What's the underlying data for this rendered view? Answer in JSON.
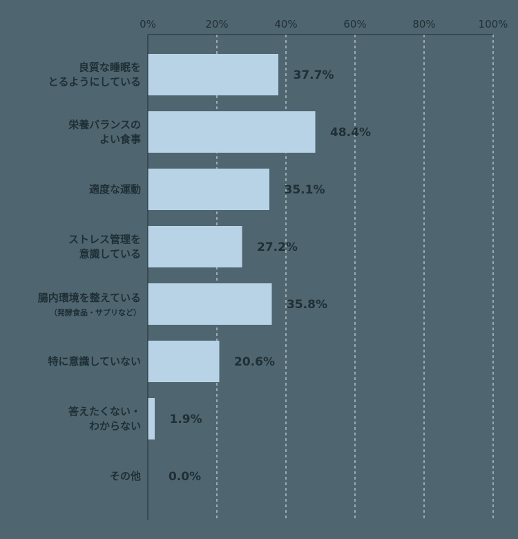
{
  "chart_data": {
    "type": "bar",
    "orientation": "horizontal",
    "categories": [
      {
        "lines": [
          "良質な睡眠を",
          "とるようにしている"
        ]
      },
      {
        "lines": [
          "栄養バランスの",
          "よい食事"
        ]
      },
      {
        "lines": [
          "適度な運動"
        ]
      },
      {
        "lines": [
          "ストレス管理を",
          "意識している"
        ]
      },
      {
        "lines": [
          "腸内環境を整えている"
        ],
        "sub": "（発酵食品・サプリなど）"
      },
      {
        "lines": [
          "特に意識していない"
        ]
      },
      {
        "lines": [
          "答えたくない・",
          "わからない"
        ]
      },
      {
        "lines": [
          "その他"
        ]
      }
    ],
    "values": [
      37.7,
      48.4,
      35.1,
      27.2,
      35.8,
      20.6,
      1.9,
      0.0
    ],
    "value_labels": [
      "37.7%",
      "48.4%",
      "35.1%",
      "27.2%",
      "35.8%",
      "20.6%",
      "1.9%",
      "0.0%"
    ],
    "xlim": [
      0,
      100
    ],
    "x_ticks": [
      0,
      20,
      40,
      60,
      80,
      100
    ],
    "x_tick_labels": [
      "0%",
      "20%",
      "40%",
      "60%",
      "80%",
      "100%"
    ],
    "grid": "vertical dashed",
    "colors": {
      "background": "#4f6670",
      "bar": "#b9d3e6",
      "text": "#1f2f36",
      "axis": "#1f2f36",
      "grid": "#e6eef2"
    }
  }
}
